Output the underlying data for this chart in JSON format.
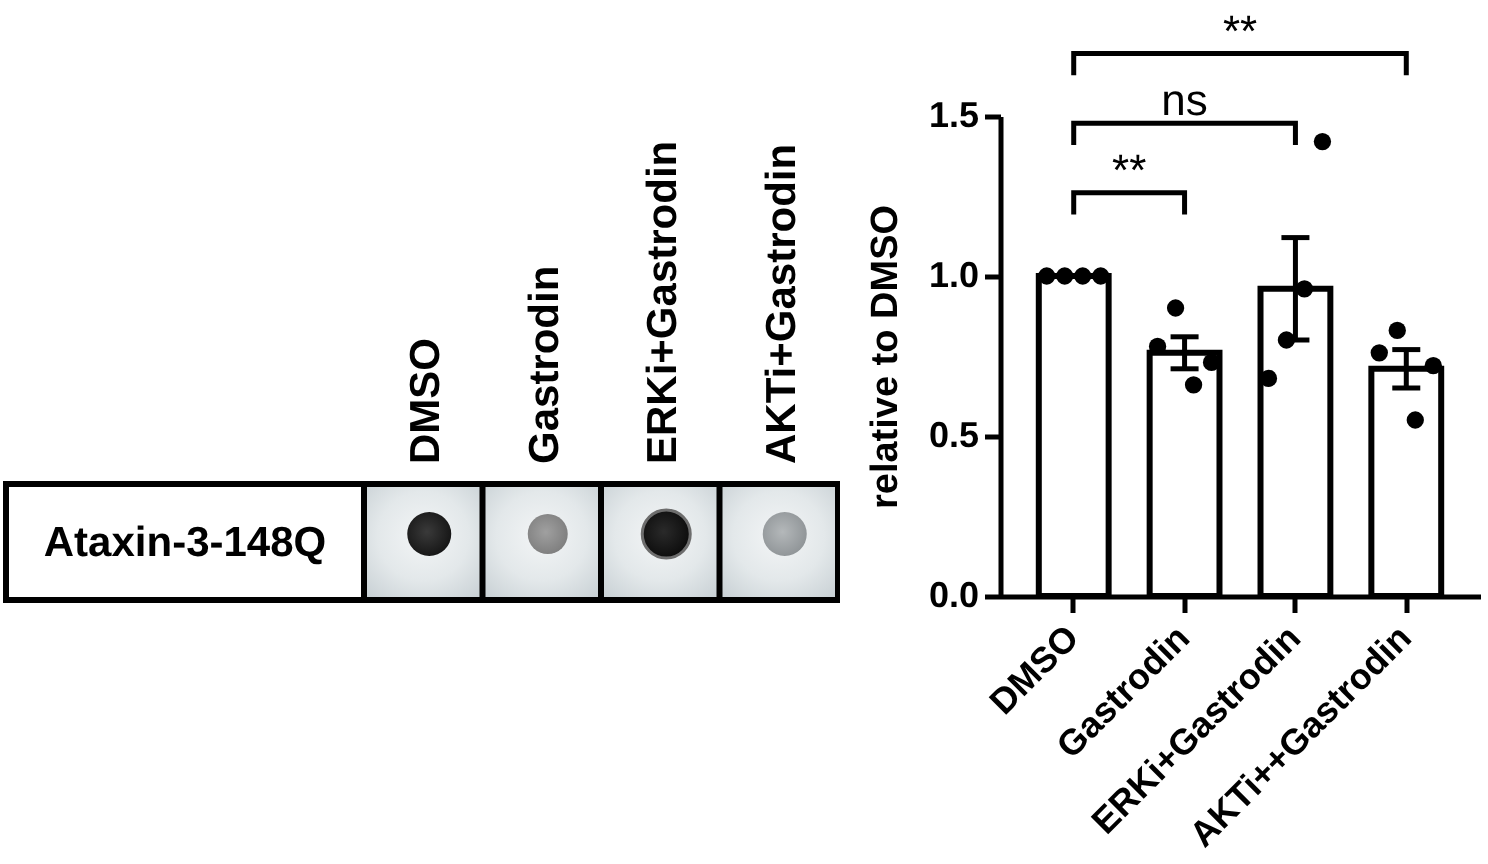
{
  "chart_data": [
    {
      "type": "other",
      "categories": [
        "DMSO",
        "Gastrodin",
        "ERKi+Gastrodin",
        "AKTi+Gastrodin"
      ],
      "y_categories": [
        "Ataxin-3-148Q"
      ]
    },
    {
      "type": "bar",
      "ylabel": "relative to DMSO",
      "categories": [
        "DMSO",
        "Gastrodin",
        "ERKi+Gastrodin",
        "AKTi++Gastrodin"
      ],
      "series": [
        {
          "type": "bar",
          "color": "#ffffff",
          "values": [
            1.0,
            0.76,
            0.96,
            0.71
          ],
          "errors": [
            null,
            0.05,
            0.16,
            0.06
          ]
        },
        {
          "type": "scatter",
          "color": "#000000",
          "x": [
            "DMSO",
            "DMSO",
            "DMSO",
            "DMSO",
            "Gastrodin",
            "Gastrodin",
            "Gastrodin",
            "Gastrodin",
            "ERKi+Gastrodin",
            "ERKi+Gastrodin",
            "ERKi+Gastrodin",
            "ERKi+Gastrodin",
            "AKTi++Gastrodin",
            "AKTi++Gastrodin",
            "AKTi++Gastrodin",
            "AKTi++Gastrodin"
          ],
          "values": [
            1.0,
            1.0,
            1.0,
            1.0,
            0.78,
            0.9,
            0.66,
            0.73,
            0.68,
            0.8,
            0.96,
            1.42,
            0.76,
            0.83,
            0.55,
            0.72
          ]
        }
      ],
      "ylim": [
        0,
        1.5
      ],
      "yticks": [
        {
          "value": 0,
          "label": "0.0"
        },
        0.5,
        {
          "value": 1,
          "label": "1.0"
        },
        1.5
      ],
      "annotations": [
        "**",
        "ns",
        "**"
      ],
      "marker": "circle",
      "grid": false
    }
  ]
}
